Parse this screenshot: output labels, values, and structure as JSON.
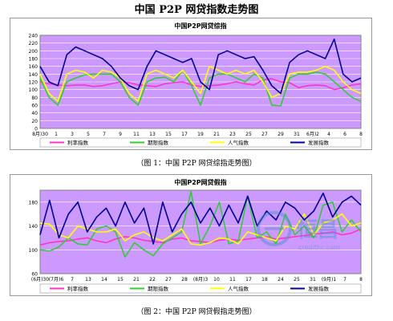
{
  "page": {
    "title": "中国 P2P 网贷指数走势图",
    "caption_1": "（图 1：中国 P2P 网贷综指走势图）",
    "caption_2": "（图 2：中国 P2P 网贷假指走势图）",
    "watermark_text": "credithc.com",
    "watermark_logo": "恒昌"
  },
  "colors": {
    "plot_background": "#cc99ff",
    "rate": "#ff33cc",
    "term": "#33cc33",
    "popularity": "#ffff00",
    "issuance": "#000099",
    "panel_background": "#ffffff"
  },
  "chart_data": [
    {
      "type": "line",
      "title": "中国P2P网贷综指",
      "x_ticks": [
        "8月)30",
        "1",
        "3",
        "5",
        "7",
        "9",
        "11",
        "13",
        "15",
        "17",
        "19",
        "21",
        "23",
        "25",
        "27",
        "29",
        "31",
        "6月)2",
        "4",
        "6",
        "8"
      ],
      "ylim": [
        0,
        240
      ],
      "y_ticks": [
        0,
        20,
        40,
        60,
        80,
        100,
        120,
        140,
        160,
        180,
        200,
        220,
        240
      ],
      "grid": true,
      "legend_position": "bottom",
      "series": [
        {
          "name": "利率指数",
          "color_key": "rate",
          "values": [
            120,
            115,
            112,
            110,
            112,
            112,
            108,
            110,
            115,
            120,
            118,
            112,
            110,
            108,
            115,
            118,
            120,
            112,
            108,
            110,
            112,
            115,
            120,
            115,
            112,
            125,
            128,
            120,
            118,
            105,
            110,
            112,
            110,
            100,
            105,
            112,
            115
          ]
        },
        {
          "name": "期限指数",
          "color_key": "term",
          "values": [
            130,
            80,
            60,
            120,
            130,
            138,
            140,
            140,
            140,
            120,
            80,
            60,
            120,
            130,
            132,
            120,
            150,
            110,
            60,
            130,
            140,
            140,
            130,
            120,
            140,
            130,
            60,
            58,
            130,
            140,
            140,
            145,
            140,
            120,
            100,
            80,
            70
          ]
        },
        {
          "name": "人气指数",
          "color_key": "popularity",
          "values": [
            140,
            90,
            70,
            140,
            150,
            145,
            130,
            150,
            145,
            130,
            90,
            70,
            140,
            150,
            140,
            130,
            150,
            120,
            90,
            160,
            150,
            140,
            150,
            140,
            150,
            120,
            80,
            90,
            140,
            145,
            145,
            150,
            160,
            150,
            120,
            100,
            90
          ]
        },
        {
          "name": "发展指数",
          "color_key": "issuance",
          "values": [
            160,
            120,
            110,
            190,
            210,
            200,
            190,
            180,
            160,
            130,
            110,
            100,
            160,
            200,
            190,
            180,
            170,
            180,
            120,
            100,
            190,
            200,
            190,
            180,
            185,
            150,
            110,
            90,
            170,
            190,
            200,
            190,
            180,
            230,
            140,
            120,
            130
          ]
        }
      ]
    },
    {
      "type": "line",
      "title": "中国P2P网贷假指",
      "x_ticks": [
        "(6月)",
        "30",
        "(7月)",
        "6",
        "7",
        "13",
        "14",
        "15",
        "21",
        "22",
        "27",
        "28",
        "(8月)",
        "2",
        "4",
        "10",
        "11",
        "17",
        "18",
        "24",
        "25",
        "31",
        "(9月)",
        "1",
        "7",
        "8"
      ],
      "x_tick_labels_shown": [
        "(6月)30",
        "(7月)6",
        "7",
        "13",
        "14",
        "15",
        "21",
        "22",
        "27",
        "28",
        "(8月)3",
        "10",
        "11",
        "17",
        "18",
        "24",
        "25",
        "31",
        "(9月)1",
        "7",
        "8"
      ],
      "ylim": [
        60,
        200
      ],
      "y_ticks": [
        60,
        100,
        140,
        180
      ],
      "grid": true,
      "legend_position": "bottom",
      "series": [
        {
          "name": "利率指数",
          "color_key": "rate",
          "values": [
            108,
            112,
            114,
            115,
            118,
            120,
            115,
            112,
            118,
            122,
            120,
            116,
            114,
            112,
            118,
            120,
            115,
            114,
            112,
            116,
            118,
            116,
            118,
            120,
            122,
            118,
            120,
            122,
            124,
            126,
            128,
            130,
            125,
            128,
            135
          ]
        },
        {
          "name": "期限指数",
          "color_key": "term",
          "values": [
            100,
            98,
            105,
            120,
            110,
            108,
            135,
            140,
            130,
            88,
            112,
            100,
            90,
            110,
            120,
            130,
            198,
            110,
            140,
            180,
            110,
            115,
            190,
            120,
            130,
            110,
            160,
            125,
            140,
            120,
            175,
            180,
            130,
            150,
            130
          ]
        },
        {
          "name": "人气指数",
          "color_key": "popularity",
          "values": [
            145,
            143,
            125,
            120,
            140,
            135,
            130,
            130,
            135,
            115,
            125,
            130,
            120,
            115,
            125,
            135,
            110,
            108,
            112,
            120,
            118,
            110,
            130,
            125,
            120,
            115,
            140,
            135,
            160,
            125,
            145,
            150,
            160,
            140,
            145
          ]
        },
        {
          "name": "发展指数",
          "color_key": "issuance",
          "values": [
            125,
            183,
            120,
            160,
            180,
            130,
            155,
            170,
            140,
            180,
            145,
            170,
            110,
            180,
            130,
            160,
            180,
            145,
            170,
            140,
            175,
            145,
            190,
            140,
            165,
            150,
            180,
            170,
            150,
            165,
            195,
            155,
            180,
            190,
            175
          ]
        }
      ]
    }
  ]
}
